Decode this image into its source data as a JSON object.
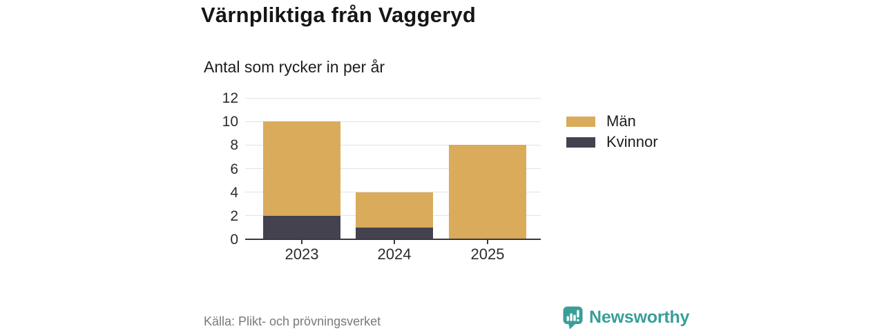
{
  "header": {
    "title": "Värnpliktiga från Vaggeryd",
    "subtitle": "Antal som rycker in per år"
  },
  "chart_data": {
    "type": "bar",
    "stacked": true,
    "title": "Värnpliktiga från Vaggeryd",
    "subtitle": "Antal som rycker in per år",
    "categories": [
      "2023",
      "2024",
      "2025"
    ],
    "series": [
      {
        "name": "Män",
        "color": "#d9ab5b",
        "values": [
          8,
          3,
          8
        ]
      },
      {
        "name": "Kvinnor",
        "color": "#45424f",
        "values": [
          2,
          1,
          0
        ]
      }
    ],
    "stack_order_bottom_to_top": [
      "Kvinnor",
      "Män"
    ],
    "totals": [
      10,
      4,
      8
    ],
    "ylim": [
      0,
      12
    ],
    "yticks": [
      0,
      2,
      4,
      6,
      8,
      10,
      12
    ],
    "xlabel": "",
    "ylabel": "",
    "grid": true,
    "legend_position": "right"
  },
  "footer": {
    "source": "Källa: Plikt- och prövningsverket",
    "brand": "Newsworthy"
  },
  "colors": {
    "men": "#d9ab5b",
    "women": "#45424f",
    "gridline": "#e2e2e6",
    "axis": "#37373e",
    "brand_teal": "#3a9e98",
    "source_gray": "#78787f"
  }
}
